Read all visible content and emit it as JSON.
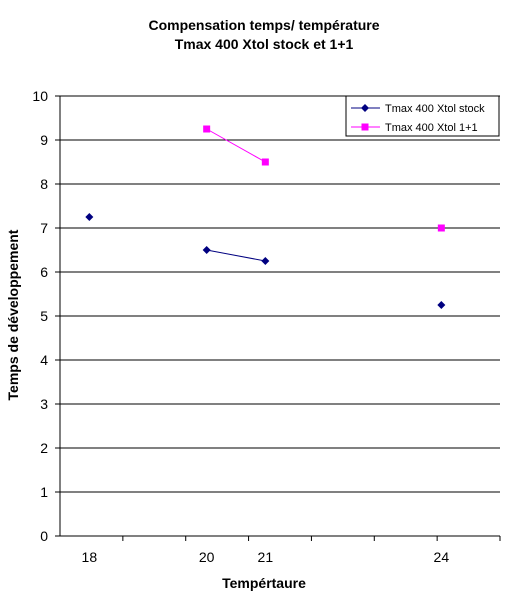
{
  "chart_data": {
    "type": "scatter",
    "title_lines": [
      "Compensation temps/ température",
      "Tmax 400 Xtol stock et 1+1"
    ],
    "xlabel": "Tempértaure",
    "ylabel": "Temps de développement",
    "xlim": [
      17.5,
      25
    ],
    "ylim": [
      0,
      10
    ],
    "x_tick_labels": [
      18,
      20,
      21,
      24
    ],
    "y_tick_labels": [
      0,
      1,
      2,
      3,
      4,
      5,
      6,
      7,
      8,
      9,
      10
    ],
    "grid": "horizontal",
    "legend_position": "top-right",
    "series": [
      {
        "name": "Tmax 400 Xtol stock",
        "color": "#000080",
        "marker": "diamond",
        "points": [
          {
            "x": 18,
            "y": 7.25
          },
          {
            "x": 20,
            "y": 6.5
          },
          {
            "x": 21,
            "y": 6.25
          },
          {
            "x": 24,
            "y": 5.25
          }
        ],
        "lines": [
          [
            1,
            2
          ]
        ]
      },
      {
        "name": "Tmax 400 Xtol 1+1",
        "color": "#ff00ff",
        "marker": "square",
        "points": [
          {
            "x": 20,
            "y": 9.25
          },
          {
            "x": 21,
            "y": 8.5
          },
          {
            "x": 24,
            "y": 7.0
          }
        ],
        "lines": [
          [
            0,
            1
          ]
        ]
      }
    ]
  }
}
